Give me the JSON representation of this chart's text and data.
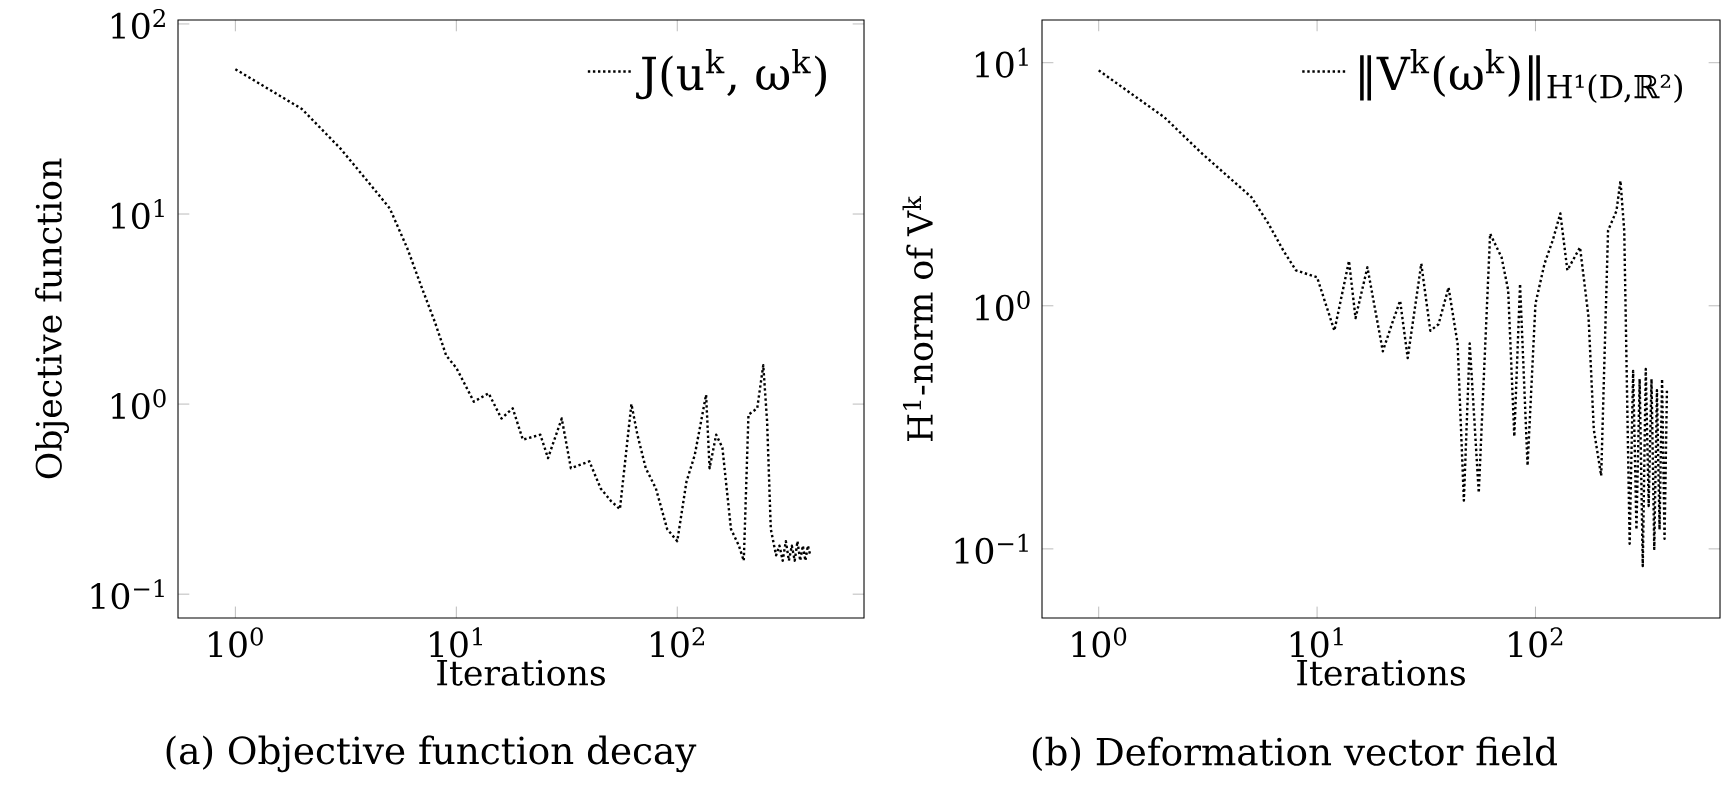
{
  "chart_data": [
    {
      "type": "line",
      "xlabel": "Iterations",
      "ylabel": "Objective function",
      "log": "xy",
      "legend": "top right",
      "line_style": "dotted",
      "marker": "none",
      "grid": false,
      "xlim": [
        0.55,
        700
      ],
      "ylim": [
        0.075,
        105
      ],
      "xticks": [
        {
          "value": 1,
          "label": "10$^{0}$"
        },
        {
          "value": 10,
          "label": "10$^{1}$"
        },
        {
          "value": 100,
          "label": "10$^{2}$"
        }
      ],
      "yticks": [
        {
          "value": 0.1,
          "label": "10$^{−1}$"
        },
        {
          "value": 1,
          "label": "10$^{0}$"
        },
        {
          "value": 10,
          "label": "10$^{1}$"
        },
        {
          "value": 100,
          "label": "10$^{2}$"
        }
      ],
      "annotations": [
        "(a) Objective function decay"
      ],
      "series": [
        {
          "name": "J(u$^{k}$, ω$^{k}$)",
          "color": "#000000",
          "x": [
            1,
            2,
            3,
            4,
            5,
            6,
            7,
            8,
            9,
            10,
            12,
            14,
            16,
            18,
            20,
            24,
            26,
            30,
            33,
            40,
            45,
            50,
            55,
            62,
            66,
            72,
            80,
            90,
            100,
            110,
            120,
            135,
            140,
            150,
            160,
            175,
            190,
            200,
            210,
            230,
            245,
            255,
            265,
            280,
            290,
            300,
            310,
            320,
            330,
            340,
            350,
            360,
            370,
            380,
            390,
            400
          ],
          "values": [
            57.8,
            35.7,
            22,
            14.7,
            10.7,
            6.6,
            4.06,
            2.7,
            1.8,
            1.55,
            1.03,
            1.14,
            0.84,
            0.95,
            0.65,
            0.69,
            0.52,
            0.84,
            0.46,
            0.5,
            0.36,
            0.31,
            0.28,
            1.0,
            0.69,
            0.46,
            0.36,
            0.22,
            0.19,
            0.39,
            0.54,
            1.12,
            0.46,
            0.69,
            0.59,
            0.22,
            0.18,
            0.15,
            0.88,
            0.95,
            1.6,
            0.81,
            0.22,
            0.16,
            0.18,
            0.15,
            0.19,
            0.15,
            0.18,
            0.15,
            0.19,
            0.15,
            0.18,
            0.15,
            0.18,
            0.16
          ]
        }
      ]
    },
    {
      "type": "line",
      "xlabel": "Iterations",
      "ylabel": "H$^{1}$-norm of V$^{k}$",
      "log": "xy",
      "legend": "top right",
      "line_style": "dotted",
      "marker": "none",
      "grid": false,
      "xlim": [
        0.55,
        700
      ],
      "ylim": [
        0.052,
        15
      ],
      "xticks": [
        {
          "value": 1,
          "label": "10$^{0}$"
        },
        {
          "value": 10,
          "label": "10$^{1}$"
        },
        {
          "value": 100,
          "label": "10$^{2}$"
        }
      ],
      "yticks": [
        {
          "value": 0.1,
          "label": "10$^{−1}$"
        },
        {
          "value": 1,
          "label": "10$^{0}$"
        },
        {
          "value": 10,
          "label": "10$^{1}$"
        }
      ],
      "annotations": [
        "(b) Deformation vector field"
      ],
      "series": [
        {
          "name": "‖V$^{k}$(ω$^{k}$)‖$_{H¹(D,ℝ²)}$",
          "color": "#000000",
          "x": [
            1,
            2,
            3,
            5,
            6,
            7,
            8,
            10,
            12,
            14,
            15,
            17,
            20,
            22,
            24,
            26,
            30,
            33,
            36,
            40,
            44,
            47,
            50,
            55,
            62,
            70,
            75,
            80,
            85,
            92,
            100,
            110,
            120,
            130,
            140,
            160,
            175,
            185,
            200,
            215,
            235,
            245,
            255,
            270,
            280,
            290,
            300,
            310,
            320,
            330,
            340,
            350,
            360,
            370,
            380,
            390,
            400
          ],
          "values": [
            9.3,
            5.96,
            4.2,
            2.8,
            2.17,
            1.69,
            1.4,
            1.31,
            0.79,
            1.53,
            0.89,
            1.44,
            0.65,
            0.84,
            1.05,
            0.61,
            1.49,
            0.79,
            0.84,
            1.19,
            0.7,
            0.158,
            0.7,
            0.17,
            1.98,
            1.58,
            1.16,
            0.29,
            1.23,
            0.22,
            1.02,
            1.49,
            1.86,
            2.4,
            1.4,
            1.74,
            0.9,
            0.31,
            0.2,
            2.04,
            2.46,
            3.27,
            2.04,
            0.105,
            0.54,
            0.12,
            0.5,
            0.085,
            0.55,
            0.15,
            0.5,
            0.1,
            0.45,
            0.12,
            0.5,
            0.11,
            0.45
          ]
        }
      ]
    }
  ]
}
